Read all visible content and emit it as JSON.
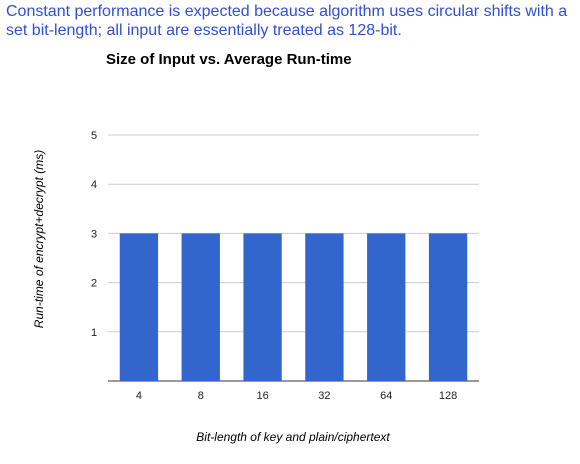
{
  "caption": "Constant performance is expected because algorithm uses circular shifts with a set bit-length; all input are essentially treated as 128-bit.",
  "chart_data": {
    "type": "bar",
    "title": "Size of Input vs. Average Run-time",
    "xlabel": "Bit-length of key and plain/ciphertext",
    "ylabel": "Run-time of encrypt+decrypt (ms)",
    "categories": [
      "4",
      "8",
      "16",
      "32",
      "64",
      "128"
    ],
    "values": [
      3,
      3,
      3,
      3,
      3,
      3
    ],
    "ylim": [
      0,
      5
    ],
    "yticks": [
      1,
      2,
      3,
      4,
      5
    ],
    "grid": true,
    "bar_color": "#3366cc",
    "grid_color": "#cccccc"
  }
}
